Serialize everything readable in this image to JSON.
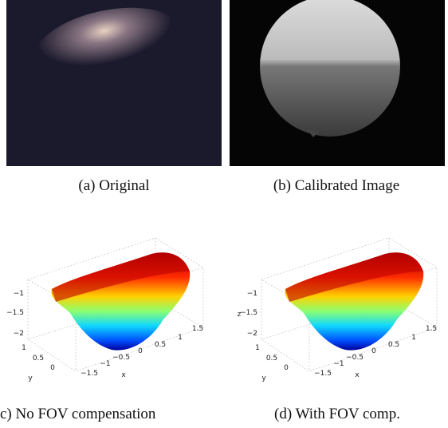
{
  "panels": [
    {
      "caption": "(a) Original"
    },
    {
      "caption": "(b) Calibrated Image"
    },
    {
      "caption": "c) No FOV compensation",
      "z_ticks": [
        "−1",
        "−1.5",
        "−2"
      ],
      "y_ticks": [
        "1",
        "0.5",
        "0"
      ],
      "y_label": "y",
      "x_ticks": [
        "−1.5",
        "−1",
        "−0.5",
        "0",
        "0.5",
        "1",
        "1.5"
      ],
      "x_label": "x"
    },
    {
      "caption": "(d) With FOV comp.",
      "z_ticks": [
        "−1",
        "−1.5",
        "−2"
      ],
      "z_label": "z",
      "y_ticks": [
        "1",
        "0.5",
        "0"
      ],
      "y_label": "y",
      "x_ticks": [
        "−1.5",
        "−1",
        "−0.5",
        "0",
        "0.5",
        "1",
        "1.5"
      ],
      "x_label": "x"
    }
  ]
}
